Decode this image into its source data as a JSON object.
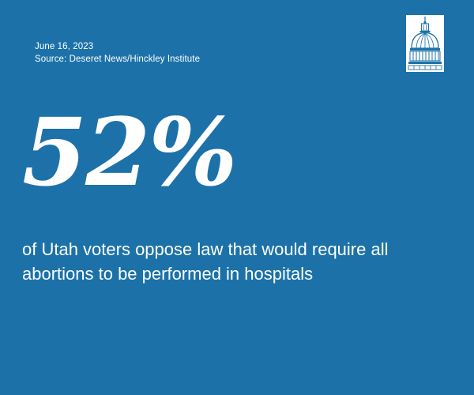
{
  "header": {
    "date": "June 16, 2023",
    "source": "Source: Deseret News/Hinckley Institute"
  },
  "logo": {
    "icon": "capitol-dome-icon"
  },
  "stat": {
    "value": "52%",
    "description": "of Utah voters oppose law that would require all abortions to be performed in hospitals"
  },
  "colors": {
    "background": "#1c72a8",
    "text": "#ffffff"
  }
}
